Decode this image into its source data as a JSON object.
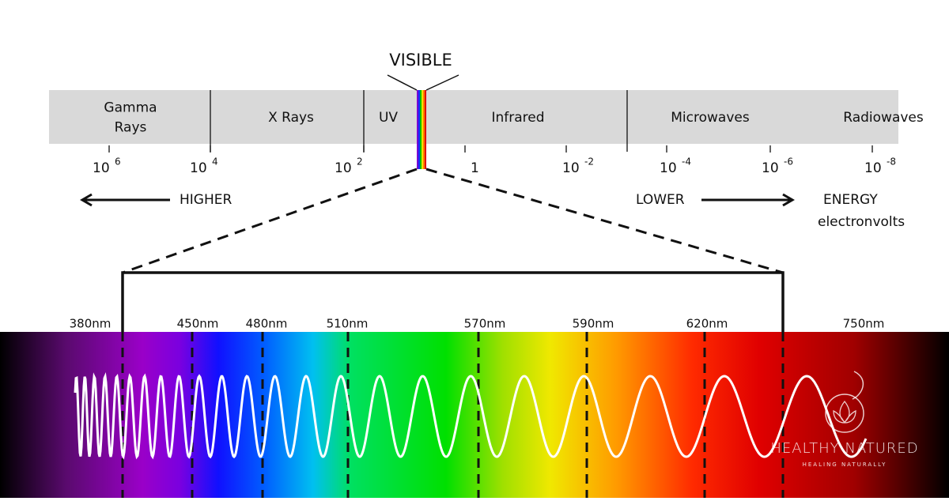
{
  "visible_label": "VISIBLE",
  "bands": [
    {
      "lines": [
        "Gamma",
        "Rays"
      ]
    },
    {
      "lines": [
        "X Rays"
      ]
    },
    {
      "lines": [
        "UV"
      ]
    },
    {
      "lines": [
        "Infrared"
      ]
    },
    {
      "lines": [
        "Microwaves"
      ]
    },
    {
      "lines": [
        "Radiowaves"
      ]
    }
  ],
  "energy_ticks": [
    {
      "base": "10",
      "exponent": "6"
    },
    {
      "base": "10",
      "exponent": "4"
    },
    {
      "base": "10",
      "exponent": "2"
    },
    {
      "base": "1"
    },
    {
      "base": "10",
      "exponent": "-2"
    },
    {
      "base": "10",
      "exponent": "-4"
    },
    {
      "base": "10",
      "exponent": "-6"
    },
    {
      "base": "10",
      "exponent": "-8"
    }
  ],
  "energy_scale": {
    "higher": "HIGHER",
    "lower": "LOWER",
    "label": "ENERGY",
    "unit": "electronvolts"
  },
  "wavelengths": [
    "380nm",
    "450nm",
    "480nm",
    "510nm",
    "570nm",
    "590nm",
    "620nm",
    "750nm"
  ],
  "logo": {
    "name": "HEALTHY NATURED",
    "tagline": "HEALING NATURALLY"
  }
}
